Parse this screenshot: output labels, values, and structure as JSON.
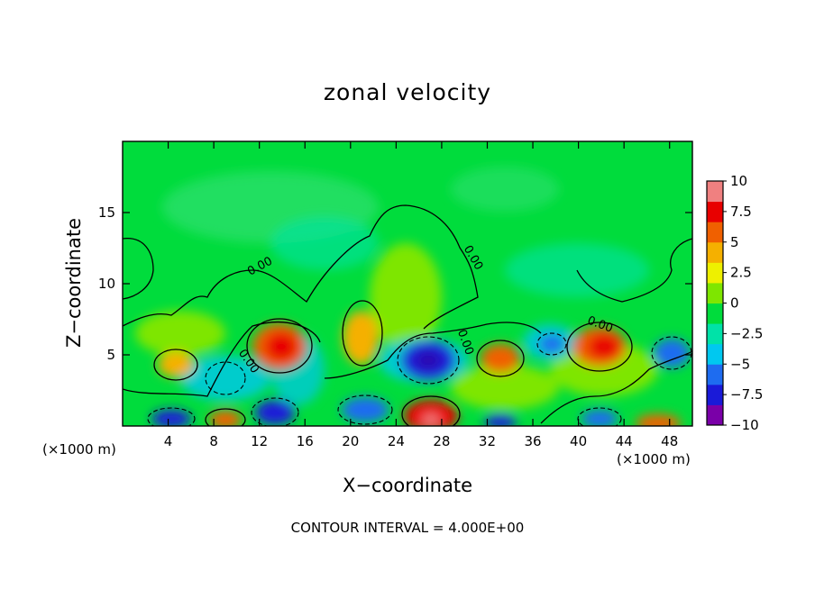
{
  "chart_data": {
    "type": "heatmap",
    "title": "zonal velocity",
    "xlabel": "X−coordinate",
    "ylabel": "Z−coordinate",
    "x_unit_left": "(×1000 m)",
    "x_unit_right": "(×1000 m)",
    "xlim": [
      0,
      50
    ],
    "ylim": [
      0,
      20
    ],
    "xticks": [
      4,
      8,
      12,
      16,
      20,
      24,
      28,
      32,
      36,
      40,
      44,
      48
    ],
    "yticks": [
      5,
      10,
      15
    ],
    "colorbar": {
      "range": [
        -10,
        10
      ],
      "ticks": [
        "10",
        "7.5",
        "5",
        "2.5",
        "0",
        "−2.5",
        "−5",
        "−7.5",
        "−10"
      ],
      "colors": [
        "#7a00a8",
        "#1a1ad8",
        "#1e6cf0",
        "#00c8f0",
        "#00e2a8",
        "#00dc3c",
        "#7ee600",
        "#eef000",
        "#f5b000",
        "#f06000",
        "#e80000",
        "#f08080"
      ]
    },
    "contour_labels": [
      "0.00",
      "0.00",
      "0.00",
      "0.00",
      "0.00"
    ],
    "footer": "CONTOUR INTERVAL = 4.000E+00"
  }
}
